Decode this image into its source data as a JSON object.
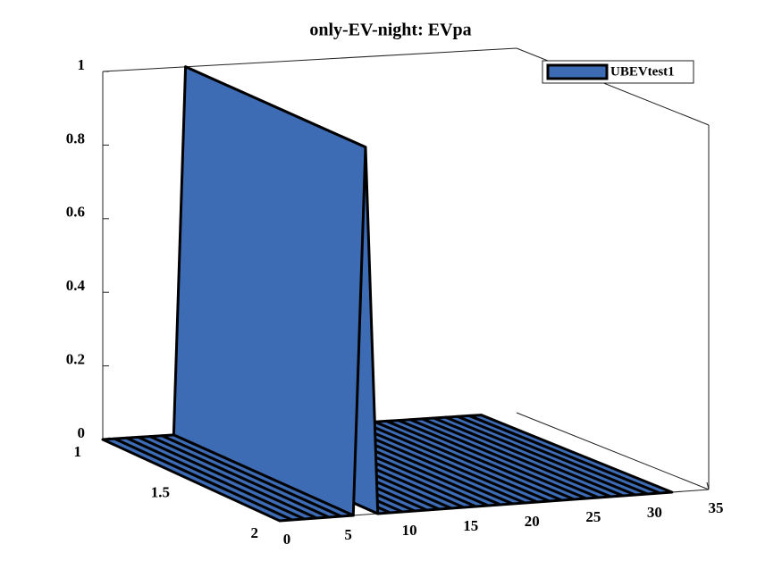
{
  "chart_data": {
    "type": "ribbon",
    "title": "only-EV-night: EVpa",
    "x": [
      0,
      1,
      2,
      3,
      4,
      5,
      6,
      7,
      8,
      9,
      10,
      11,
      12,
      13,
      14,
      15,
      16,
      17,
      18,
      19,
      20,
      21,
      22,
      23,
      24,
      25,
      26,
      27,
      28,
      29,
      30,
      31,
      32
    ],
    "series": [
      {
        "name": "UBEVtest1",
        "color": "#3d6cb5",
        "values": [
          0,
          0,
          0,
          0,
          0,
          0,
          0,
          1,
          0,
          0,
          0,
          0,
          0,
          0,
          0,
          0,
          0,
          0,
          0,
          0,
          0,
          0,
          0,
          0,
          0,
          0,
          0,
          0,
          0,
          0,
          0,
          0,
          0
        ]
      }
    ],
    "xlim": [
      0,
      35
    ],
    "xticks": [
      0,
      5,
      10,
      15,
      20,
      25,
      30,
      35
    ],
    "ylim": [
      1,
      2
    ],
    "yticks": [
      1,
      1.5,
      2
    ],
    "zlim": [
      0,
      1
    ],
    "zticks": [
      0,
      0.2,
      0.4,
      0.6,
      0.8,
      1
    ],
    "legend": "upper right"
  }
}
